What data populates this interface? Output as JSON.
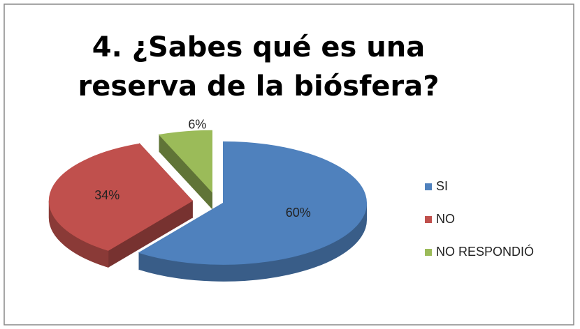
{
  "chart_data": {
    "type": "pie3d",
    "title": "4. ¿Sabes qué es una reserva de la biósfera?",
    "categories": [
      "SI",
      "NO",
      "NO RESPONDIÓ"
    ],
    "values": [
      60,
      34,
      6
    ],
    "value_labels": [
      "60%",
      "34%",
      "6%"
    ],
    "colors": [
      "#4f81bd",
      "#c0504d",
      "#9bbb59"
    ],
    "legend": "right"
  }
}
